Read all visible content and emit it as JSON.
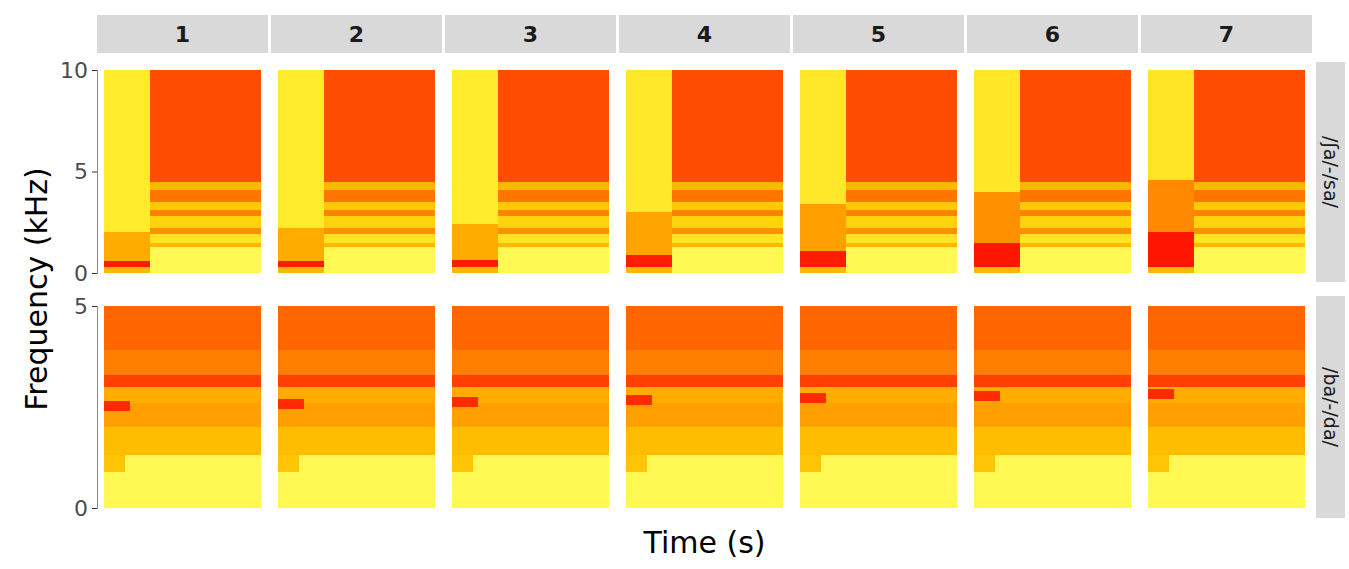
{
  "chart_data": {
    "type": "heatmap",
    "x_label": "Time (s)",
    "y_label": "Frequency (kHz)",
    "tick_labels": "y",
    "zlim": [
      0,
      1
    ],
    "columns": [
      "1",
      "2",
      "3",
      "4",
      "5",
      "6",
      "7"
    ],
    "rows": [
      {
        "label": "/ʃa/-/sa/",
        "xlim": [
          0,
          0.5
        ],
        "ylim": [
          0,
          10
        ],
        "yticks": [
          0,
          5,
          10
        ],
        "shared_cells": [
          [
            0.145,
            0.5,
            0,
            1.3,
            0.95
          ],
          [
            0.145,
            0.5,
            1.3,
            1.5,
            0.6
          ],
          [
            0.145,
            0.5,
            1.5,
            1.9,
            0.82
          ],
          [
            0.145,
            0.5,
            1.9,
            2.2,
            0.45
          ],
          [
            0.145,
            0.5,
            2.2,
            2.8,
            0.72
          ],
          [
            0.145,
            0.5,
            2.8,
            3.1,
            0.4
          ],
          [
            0.145,
            0.5,
            3.1,
            3.5,
            0.68
          ],
          [
            0.145,
            0.5,
            3.5,
            4.1,
            0.35
          ],
          [
            0.145,
            0.5,
            4.1,
            4.5,
            0.6
          ],
          [
            0.145,
            0.5,
            4.5,
            10,
            0.22
          ]
        ],
        "panels": [
          {
            "cells": [
              [
                0,
                0.145,
                0,
                0.3,
                0.6
              ],
              [
                0,
                0.145,
                0.3,
                0.6,
                0.08
              ],
              [
                0,
                0.145,
                0.6,
                2.0,
                0.55
              ],
              [
                0,
                0.145,
                2.0,
                10,
                0.85
              ]
            ]
          },
          {
            "cells": [
              [
                0,
                0.145,
                0,
                0.3,
                0.6
              ],
              [
                0,
                0.145,
                0.3,
                0.6,
                0.08
              ],
              [
                0,
                0.145,
                0.6,
                2.2,
                0.55
              ],
              [
                0,
                0.145,
                2.2,
                10,
                0.85
              ]
            ]
          },
          {
            "cells": [
              [
                0,
                0.145,
                0,
                0.3,
                0.6
              ],
              [
                0,
                0.145,
                0.3,
                0.65,
                0.08
              ],
              [
                0,
                0.145,
                0.65,
                2.4,
                0.55
              ],
              [
                0,
                0.145,
                2.4,
                10,
                0.85
              ]
            ]
          },
          {
            "cells": [
              [
                0,
                0.145,
                0,
                0.3,
                0.6
              ],
              [
                0,
                0.145,
                0.3,
                0.9,
                0.08
              ],
              [
                0,
                0.145,
                0.9,
                3.0,
                0.52
              ],
              [
                0,
                0.145,
                3.0,
                10,
                0.84
              ]
            ]
          },
          {
            "cells": [
              [
                0,
                0.145,
                0,
                0.3,
                0.6
              ],
              [
                0,
                0.145,
                0.3,
                1.1,
                0.08
              ],
              [
                0,
                0.145,
                1.1,
                3.4,
                0.5
              ],
              [
                0,
                0.145,
                3.4,
                10,
                0.84
              ]
            ]
          },
          {
            "cells": [
              [
                0,
                0.145,
                0,
                0.3,
                0.6
              ],
              [
                0,
                0.145,
                0.3,
                1.5,
                0.06
              ],
              [
                0,
                0.145,
                1.5,
                4.0,
                0.45
              ],
              [
                0,
                0.145,
                4.0,
                10,
                0.83
              ]
            ]
          },
          {
            "cells": [
              [
                0,
                0.145,
                0,
                0.3,
                0.6
              ],
              [
                0,
                0.145,
                0.3,
                2.0,
                0.06
              ],
              [
                0,
                0.145,
                2.0,
                4.6,
                0.42
              ],
              [
                0,
                0.145,
                4.6,
                10,
                0.82
              ]
            ]
          }
        ]
      },
      {
        "label": "/ba/-/da/",
        "xlim": [
          0,
          0.3
        ],
        "ylim": [
          0,
          5
        ],
        "yticks": [
          0,
          5
        ],
        "shared_cells": [
          [
            0,
            0.3,
            0,
            1.3,
            0.95
          ],
          [
            0,
            0.3,
            1.3,
            2.0,
            0.62
          ],
          [
            0,
            0.3,
            2.0,
            2.6,
            0.5
          ],
          [
            0,
            0.3,
            2.6,
            3.0,
            0.55
          ],
          [
            0,
            0.3,
            3.0,
            3.3,
            0.18
          ],
          [
            0,
            0.3,
            3.3,
            3.9,
            0.38
          ],
          [
            0,
            0.3,
            3.9,
            5,
            0.3
          ]
        ],
        "panels": [
          {
            "cells": [
              [
                0,
                0.04,
                0.9,
                1.3,
                0.65
              ],
              [
                0,
                0.05,
                2.4,
                2.65,
                0.12
              ]
            ]
          },
          {
            "cells": [
              [
                0,
                0.04,
                0.9,
                1.3,
                0.65
              ],
              [
                0,
                0.05,
                2.45,
                2.7,
                0.12
              ]
            ]
          },
          {
            "cells": [
              [
                0,
                0.04,
                0.9,
                1.3,
                0.65
              ],
              [
                0,
                0.05,
                2.5,
                2.75,
                0.12
              ]
            ]
          },
          {
            "cells": [
              [
                0,
                0.04,
                0.9,
                1.3,
                0.65
              ],
              [
                0,
                0.05,
                2.55,
                2.8,
                0.12
              ]
            ]
          },
          {
            "cells": [
              [
                0,
                0.04,
                0.9,
                1.3,
                0.65
              ],
              [
                0,
                0.05,
                2.6,
                2.85,
                0.12
              ]
            ]
          },
          {
            "cells": [
              [
                0,
                0.04,
                0.9,
                1.3,
                0.65
              ],
              [
                0,
                0.05,
                2.65,
                2.9,
                0.12
              ]
            ]
          },
          {
            "cells": [
              [
                0,
                0.04,
                0.9,
                1.3,
                0.65
              ],
              [
                0,
                0.05,
                2.7,
                2.95,
                0.12
              ]
            ]
          }
        ]
      }
    ]
  }
}
